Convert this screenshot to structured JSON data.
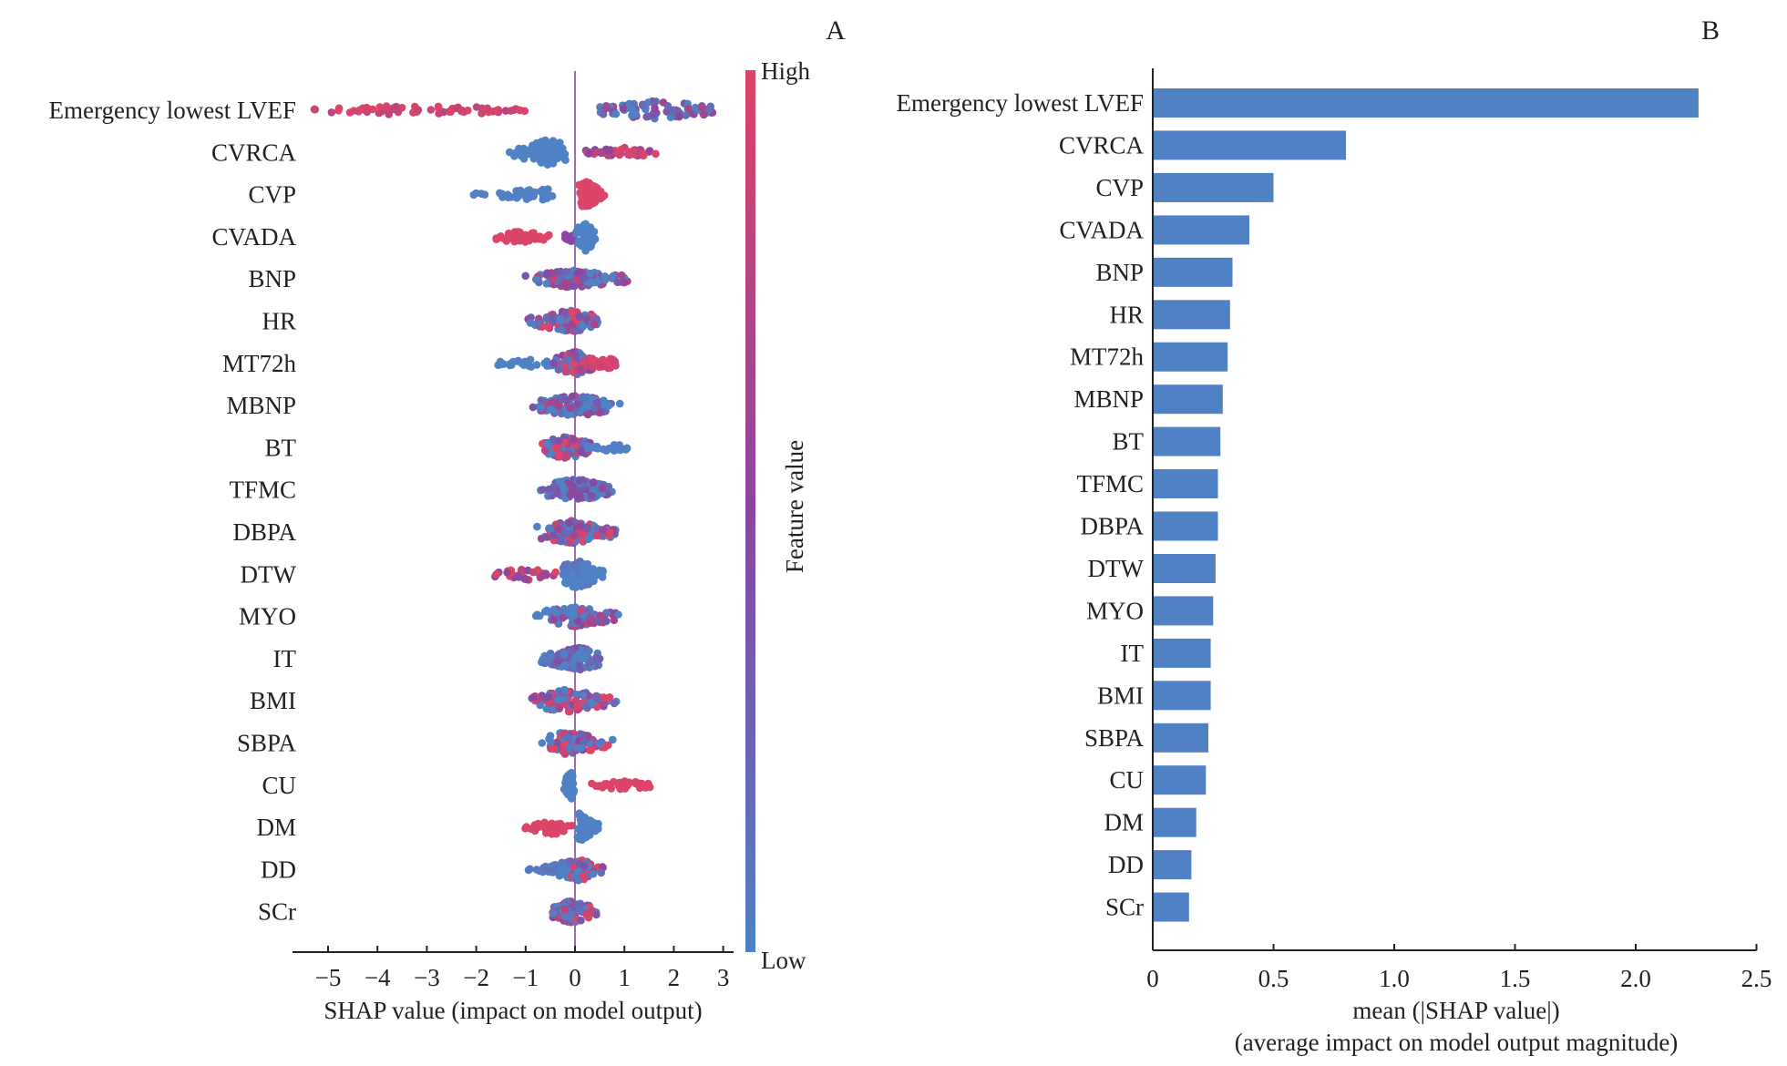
{
  "panels": {
    "left_label": "A",
    "right_label": "B"
  },
  "chart_data": [
    {
      "type": "scatter",
      "subtype": "shap-beeswarm",
      "panel": "A",
      "xlabel": "SHAP value (impact on model output)",
      "xlim": [
        -5.6,
        3.3
      ],
      "xticks": [
        -5,
        -4,
        -3,
        -2,
        -1,
        0,
        1,
        2,
        3
      ],
      "xtick_labels": [
        "−5",
        "−4",
        "−3",
        "−2",
        "−1",
        "0",
        "1",
        "2",
        "3"
      ],
      "colorbar": {
        "label": "Feature value",
        "high": "High",
        "low": "Low",
        "high_color": "#dc4468",
        "mid_color": "#8a46a0",
        "low_color": "#4f81c4"
      },
      "zero_line": 0,
      "features": [
        {
          "name": "Emergency lowest LVEF",
          "segments": [
            {
              "from": -5.3,
              "to": -1.0,
              "color": 0.92,
              "jitter": 0.35,
              "n": 70,
              "mix": 0.12
            },
            {
              "from": 0.5,
              "to": 2.8,
              "color": 0.25,
              "jitter": 0.7,
              "n": 90,
              "mix": 0.35
            }
          ]
        },
        {
          "name": "CVRCA",
          "segments": [
            {
              "from": -1.36,
              "to": -0.15,
              "color": 0.0,
              "jitter": 0.9,
              "n": 90,
              "mix": 0.0,
              "peak": -0.55
            },
            {
              "from": 0.22,
              "to": 1.73,
              "color": 0.8,
              "jitter": 0.35,
              "n": 40,
              "mix": 0.3
            }
          ]
        },
        {
          "name": "CVP",
          "segments": [
            {
              "from": -2.2,
              "to": -0.35,
              "color": 0.0,
              "jitter": 0.45,
              "n": 45,
              "mix": 0.0,
              "peak": -0.6
            },
            {
              "from": 0.05,
              "to": 0.63,
              "color": 1.0,
              "jitter": 1.0,
              "n": 80,
              "mix": 0.0,
              "peak": 0.2
            }
          ]
        },
        {
          "name": "CVADA",
          "segments": [
            {
              "from": -1.7,
              "to": -0.45,
              "color": 1.0,
              "jitter": 0.4,
              "n": 40,
              "mix": 0.0,
              "peak": -1.1
            },
            {
              "from": -0.2,
              "to": 0.0,
              "color": 0.5,
              "jitter": 0.5,
              "n": 15,
              "mix": 0.0
            },
            {
              "from": 0.0,
              "to": 0.48,
              "color": 0.0,
              "jitter": 1.0,
              "n": 55,
              "mix": 0.0,
              "peak": 0.2
            }
          ]
        },
        {
          "name": "BNP",
          "segments": [
            {
              "from": -1.1,
              "to": 1.2,
              "color": 0.25,
              "jitter": 0.6,
              "n": 130,
              "mix": 0.45,
              "peak": -0.05
            }
          ]
        },
        {
          "name": "HR",
          "segments": [
            {
              "from": -1.0,
              "to": 0.6,
              "color": 0.5,
              "jitter": 0.75,
              "n": 120,
              "mix": 0.55,
              "peak": -0.1
            }
          ]
        },
        {
          "name": "MT72h",
          "segments": [
            {
              "from": -1.6,
              "to": -0.4,
              "color": 0.0,
              "jitter": 0.35,
              "n": 25,
              "mix": 0.0
            },
            {
              "from": -0.5,
              "to": 0.4,
              "color": 0.55,
              "jitter": 0.85,
              "n": 90,
              "mix": 0.5,
              "peak": 0.0
            },
            {
              "from": 0.3,
              "to": 0.85,
              "color": 0.95,
              "jitter": 0.5,
              "n": 35,
              "mix": 0.05
            }
          ]
        },
        {
          "name": "MBNP",
          "segments": [
            {
              "from": -0.9,
              "to": 0.95,
              "color": 0.2,
              "jitter": 0.75,
              "n": 120,
              "mix": 0.4,
              "peak": 0.0
            }
          ]
        },
        {
          "name": "BT",
          "segments": [
            {
              "from": -0.75,
              "to": 0.4,
              "color": 0.55,
              "jitter": 0.8,
              "n": 100,
              "mix": 0.5,
              "peak": -0.2
            },
            {
              "from": 0.2,
              "to": 1.1,
              "color": 0.0,
              "jitter": 0.3,
              "n": 25,
              "mix": 0.0
            }
          ]
        },
        {
          "name": "TFMC",
          "segments": [
            {
              "from": -0.75,
              "to": 0.8,
              "color": 0.15,
              "jitter": 0.8,
              "n": 120,
              "mix": 0.35,
              "peak": 0.0
            }
          ]
        },
        {
          "name": "DBPA",
          "segments": [
            {
              "from": -0.9,
              "to": 0.9,
              "color": 0.45,
              "jitter": 0.8,
              "n": 130,
              "mix": 0.6,
              "peak": -0.1
            }
          ]
        },
        {
          "name": "DTW",
          "segments": [
            {
              "from": -1.65,
              "to": -0.3,
              "color": 0.8,
              "jitter": 0.4,
              "n": 30,
              "mix": 0.35
            },
            {
              "from": -0.3,
              "to": 0.6,
              "color": 0.0,
              "jitter": 1.0,
              "n": 100,
              "mix": 0.1,
              "peak": 0.05
            }
          ]
        },
        {
          "name": "MYO",
          "segments": [
            {
              "from": -0.85,
              "to": 0.95,
              "color": 0.25,
              "jitter": 0.7,
              "n": 110,
              "mix": 0.5,
              "peak": 0.0
            }
          ]
        },
        {
          "name": "IT",
          "segments": [
            {
              "from": -0.75,
              "to": 0.65,
              "color": 0.1,
              "jitter": 0.8,
              "n": 110,
              "mix": 0.3,
              "peak": 0.05
            }
          ]
        },
        {
          "name": "BMI",
          "segments": [
            {
              "from": -0.95,
              "to": 0.85,
              "color": 0.45,
              "jitter": 0.8,
              "n": 120,
              "mix": 0.6,
              "peak": -0.15
            }
          ]
        },
        {
          "name": "SBPA",
          "segments": [
            {
              "from": -0.7,
              "to": 0.9,
              "color": 0.45,
              "jitter": 0.8,
              "n": 110,
              "mix": 0.55,
              "peak": -0.15
            }
          ]
        },
        {
          "name": "CU",
          "segments": [
            {
              "from": -0.25,
              "to": 0.0,
              "color": 0.0,
              "jitter": 1.0,
              "n": 60,
              "mix": 0.0,
              "peak": -0.08
            },
            {
              "from": 0.3,
              "to": 1.65,
              "color": 1.0,
              "jitter": 0.3,
              "n": 35,
              "mix": 0.0
            }
          ]
        },
        {
          "name": "DM",
          "segments": [
            {
              "from": -1.1,
              "to": -0.05,
              "color": 1.0,
              "jitter": 0.5,
              "n": 45,
              "mix": 0.0,
              "peak": -0.4
            },
            {
              "from": 0.0,
              "to": 0.55,
              "color": 0.0,
              "jitter": 1.0,
              "n": 60,
              "mix": 0.0,
              "peak": 0.1
            }
          ]
        },
        {
          "name": "DD",
          "segments": [
            {
              "from": -1.0,
              "to": 0.0,
              "color": 0.0,
              "jitter": 0.6,
              "n": 55,
              "mix": 0.1,
              "peak": -0.1
            },
            {
              "from": -0.1,
              "to": 0.65,
              "color": 0.6,
              "jitter": 0.8,
              "n": 60,
              "mix": 0.6,
              "peak": 0.1
            }
          ]
        },
        {
          "name": "SCr",
          "segments": [
            {
              "from": -0.5,
              "to": 0.5,
              "color": 0.45,
              "jitter": 0.8,
              "n": 100,
              "mix": 0.6,
              "peak": -0.05
            }
          ]
        }
      ]
    },
    {
      "type": "bar",
      "orientation": "horizontal",
      "panel": "B",
      "xlabel": "mean (|SHAP value|)",
      "xlabel2": "(average impact on model output magnitude)",
      "xlim": [
        0,
        2.5
      ],
      "xticks": [
        0,
        0.5,
        1.0,
        1.5,
        2.0,
        2.5
      ],
      "xtick_labels": [
        "0",
        "0.5",
        "1.0",
        "1.5",
        "2.0",
        "2.5"
      ],
      "bar_color": "#4f81c4",
      "categories": [
        "Emergency lowest LVEF",
        "CVRCA",
        "CVP",
        "CVADA",
        "BNP",
        "HR",
        "MT72h",
        "MBNP",
        "BT",
        "TFMC",
        "DBPA",
        "DTW",
        "MYO",
        "IT",
        "BMI",
        "SBPA",
        "CU",
        "DM",
        "DD",
        "SCr"
      ],
      "values": [
        2.26,
        0.8,
        0.5,
        0.4,
        0.33,
        0.32,
        0.31,
        0.29,
        0.28,
        0.27,
        0.27,
        0.26,
        0.25,
        0.24,
        0.24,
        0.23,
        0.22,
        0.18,
        0.16,
        0.15
      ]
    }
  ]
}
